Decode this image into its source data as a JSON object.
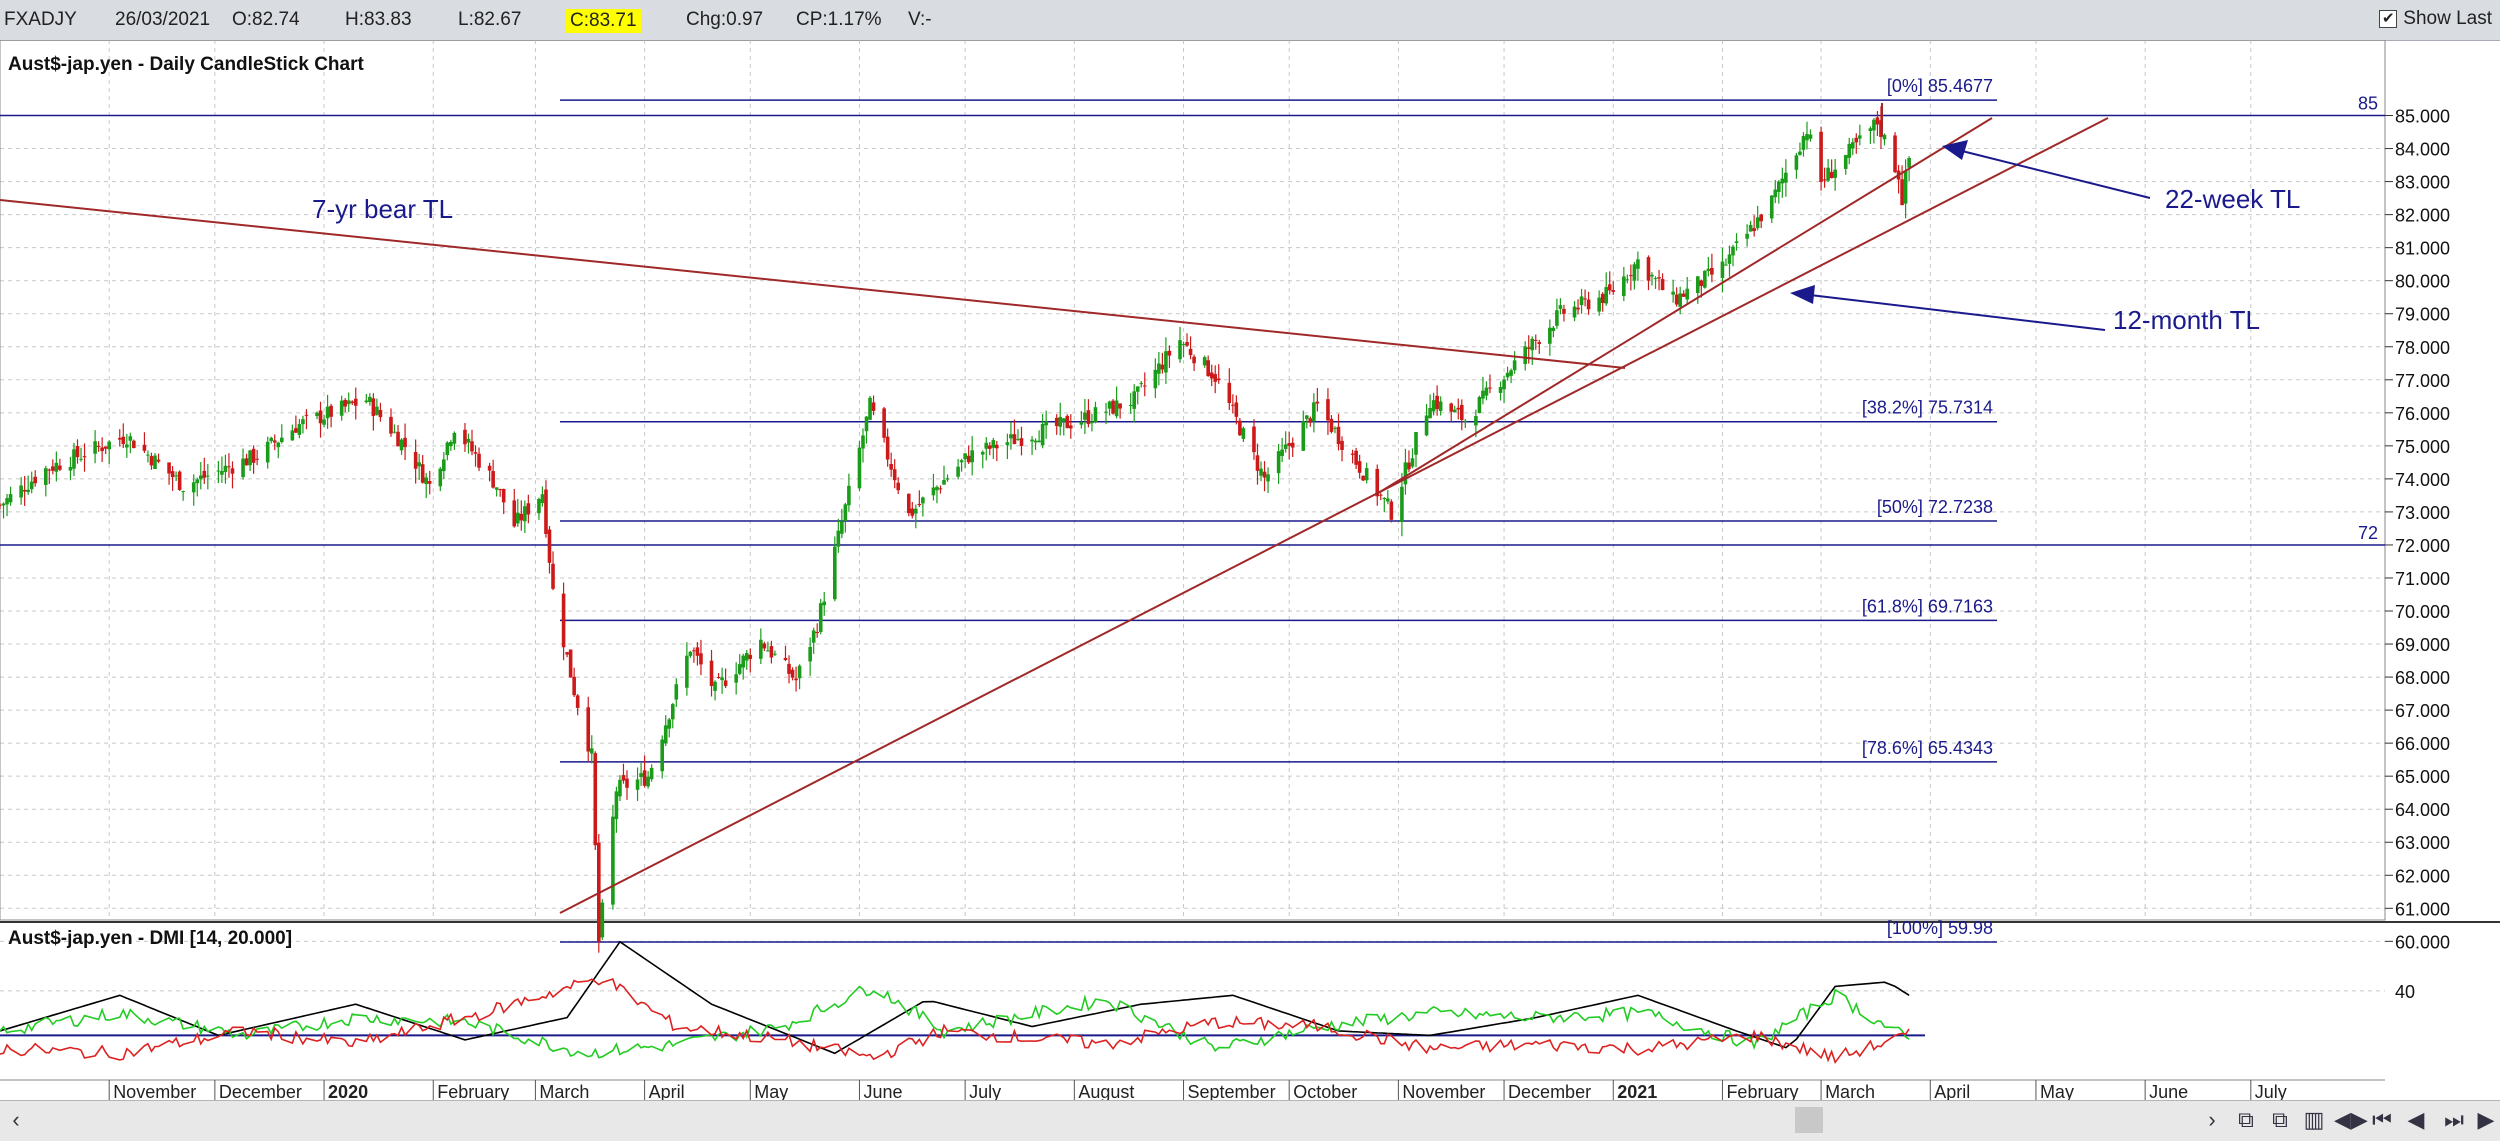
{
  "topbar": {
    "symbol": "FXADJY",
    "date": "26/03/2021",
    "open": "O:82.74",
    "high": "H:83.83",
    "low": "L:82.67",
    "close": "C:83.71",
    "change": "Chg:0.97",
    "change_pct": "CP:1.17%",
    "volume": "V:-",
    "show_last": "Show Last",
    "show_last_checked": "✔"
  },
  "colors": {
    "fib": "#1a1a8c",
    "trendline": "#a02828",
    "up": "#1a9c1a",
    "down": "#cc1a1a",
    "adx": "#000000",
    "di_plus": "#22cc22",
    "di_minus": "#dd2222",
    "annotation": "#1a1a8c"
  },
  "chart_data": [
    {
      "type": "candlestick",
      "title": "Aust$-jap.yen - Daily CandleStick Chart",
      "ylim": [
        59.3,
        85.8
      ],
      "y_ticks": [
        "85.000",
        "84.000",
        "83.000",
        "82.000",
        "81.000",
        "80.000",
        "79.000",
        "78.000",
        "77.000",
        "76.000",
        "75.000",
        "74.000",
        "73.000",
        "72.000",
        "71.000",
        "70.000",
        "69.000",
        "68.000",
        "67.000",
        "66.000",
        "65.000",
        "64.000",
        "63.000",
        "62.000",
        "61.000",
        "60.000"
      ],
      "x_labels": [
        "November",
        "December",
        "2020",
        "February",
        "March",
        "April",
        "May",
        "June",
        "July",
        "August",
        "September",
        "October",
        "November",
        "December",
        "2021",
        "February",
        "March",
        "April",
        "May",
        "June",
        "July"
      ],
      "horizontal_lines": [
        {
          "value": 85,
          "label": "85"
        },
        {
          "value": 72,
          "label": "72"
        }
      ],
      "fibonacci": [
        {
          "label": "[0%] 85.4677",
          "value": 85.4677
        },
        {
          "label": "[38.2%] 75.7314",
          "value": 75.7314
        },
        {
          "label": "[50%] 72.7238",
          "value": 72.7238
        },
        {
          "label": "[61.8%] 69.7163",
          "value": 69.7163
        },
        {
          "label": "[78.6%] 65.4343",
          "value": 65.4343
        },
        {
          "label": "[100%] 59.98",
          "value": 59.98
        }
      ],
      "annotations": [
        "7-yr bear TL",
        "22-week TL",
        "12-month TL"
      ],
      "price_anchors": [
        [
          "2019-10-01",
          73.2
        ],
        [
          "2019-10-14",
          74.3
        ],
        [
          "2019-11-06",
          75.3
        ],
        [
          "2019-11-22",
          73.8
        ],
        [
          "2019-12-13",
          74.7
        ],
        [
          "2019-12-24",
          75.6
        ],
        [
          "2020-01-13",
          76.4
        ],
        [
          "2020-01-24",
          75.0
        ],
        [
          "2020-01-31",
          73.8
        ],
        [
          "2020-02-07",
          75.6
        ],
        [
          "2020-02-19",
          73.8
        ],
        [
          "2020-02-24",
          72.6
        ],
        [
          "2020-03-03",
          73.6
        ],
        [
          "2020-03-06",
          70.6
        ],
        [
          "2020-03-12",
          67.6
        ],
        [
          "2020-03-17",
          65.6
        ],
        [
          "2020-03-19",
          60.0
        ],
        [
          "2020-03-24",
          64.6
        ],
        [
          "2020-04-02",
          65.0
        ],
        [
          "2020-04-14",
          68.9
        ],
        [
          "2020-04-21",
          67.6
        ],
        [
          "2020-05-04",
          69.1
        ],
        [
          "2020-05-14",
          67.9
        ],
        [
          "2020-05-20",
          69.6
        ],
        [
          "2020-06-04",
          76.2
        ],
        [
          "2020-06-15",
          72.9
        ],
        [
          "2020-07-02",
          74.7
        ],
        [
          "2020-07-15",
          75.2
        ],
        [
          "2020-08-03",
          75.8
        ],
        [
          "2020-08-18",
          76.4
        ],
        [
          "2020-08-31",
          78.2
        ],
        [
          "2020-09-10",
          77.1
        ],
        [
          "2020-09-24",
          74.0
        ],
        [
          "2020-10-09",
          76.2
        ],
        [
          "2020-10-30",
          73.0
        ],
        [
          "2020-11-10",
          76.4
        ],
        [
          "2020-11-20",
          75.8
        ],
        [
          "2020-12-04",
          77.5
        ],
        [
          "2020-12-17",
          79.0
        ],
        [
          "2020-12-31",
          79.6
        ],
        [
          "2021-01-08",
          80.6
        ],
        [
          "2021-01-18",
          79.4
        ],
        [
          "2021-02-01",
          80.4
        ],
        [
          "2021-02-15",
          82.4
        ],
        [
          "2021-02-25",
          84.6
        ],
        [
          "2021-03-01",
          83.0
        ],
        [
          "2021-03-12",
          84.2
        ],
        [
          "2021-03-17",
          84.8
        ],
        [
          "2021-03-23",
          83.2
        ],
        [
          "2021-03-24",
          82.5
        ],
        [
          "2021-03-26",
          83.71
        ]
      ]
    },
    {
      "type": "line",
      "title": "Aust$-jap.yen - DMI [14, 20.000]",
      "ylim": [
        0,
        70
      ],
      "y_ticks": [
        "40"
      ],
      "threshold": 20,
      "series": [
        {
          "name": "ADX",
          "anchors": [
            [
              "2019-10-01",
              22
            ],
            [
              "2019-11-04",
              38
            ],
            [
              "2019-12-02",
              20
            ],
            [
              "2020-01-10",
              34
            ],
            [
              "2020-02-10",
              18
            ],
            [
              "2020-03-10",
              28
            ],
            [
              "2020-03-25",
              62
            ],
            [
              "2020-04-20",
              34
            ],
            [
              "2020-05-25",
              12
            ],
            [
              "2020-06-20",
              36
            ],
            [
              "2020-07-20",
              24
            ],
            [
              "2020-08-20",
              34
            ],
            [
              "2020-09-15",
              38
            ],
            [
              "2020-10-15",
              22
            ],
            [
              "2020-11-10",
              20
            ],
            [
              "2020-12-10",
              28
            ],
            [
              "2021-01-08",
              38
            ],
            [
              "2021-02-05",
              22
            ],
            [
              "2021-02-20",
              14
            ],
            [
              "2021-03-05",
              42
            ],
            [
              "2021-03-20",
              44
            ],
            [
              "2021-03-26",
              38
            ]
          ]
        },
        {
          "name": "+DI",
          "anchors": [
            [
              "2019-10-01",
              22
            ],
            [
              "2019-11-04",
              30
            ],
            [
              "2019-12-10",
              20
            ],
            [
              "2020-01-10",
              28
            ],
            [
              "2020-02-10",
              26
            ],
            [
              "2020-03-15",
              12
            ],
            [
              "2020-04-10",
              16
            ],
            [
              "2020-05-10",
              24
            ],
            [
              "2020-06-05",
              42
            ],
            [
              "2020-06-25",
              22
            ],
            [
              "2020-08-10",
              36
            ],
            [
              "2020-09-10",
              14
            ],
            [
              "2020-10-10",
              24
            ],
            [
              "2020-11-10",
              30
            ],
            [
              "2020-12-10",
              28
            ],
            [
              "2021-01-10",
              30
            ],
            [
              "2021-02-10",
              16
            ],
            [
              "2021-03-05",
              38
            ],
            [
              "2021-03-26",
              18
            ]
          ]
        },
        {
          "name": "-DI",
          "anchors": [
            [
              "2019-10-01",
              14
            ],
            [
              "2019-11-04",
              12
            ],
            [
              "2019-12-10",
              22
            ],
            [
              "2020-01-10",
              16
            ],
            [
              "2020-02-15",
              30
            ],
            [
              "2020-03-20",
              46
            ],
            [
              "2020-04-10",
              24
            ],
            [
              "2020-05-10",
              18
            ],
            [
              "2020-06-05",
              10
            ],
            [
              "2020-06-25",
              22
            ],
            [
              "2020-08-10",
              16
            ],
            [
              "2020-09-10",
              26
            ],
            [
              "2020-10-10",
              24
            ],
            [
              "2020-11-10",
              14
            ],
            [
              "2020-12-10",
              16
            ],
            [
              "2021-01-10",
              14
            ],
            [
              "2021-02-10",
              20
            ],
            [
              "2021-03-05",
              10
            ],
            [
              "2021-03-26",
              20
            ]
          ]
        }
      ]
    }
  ]
}
